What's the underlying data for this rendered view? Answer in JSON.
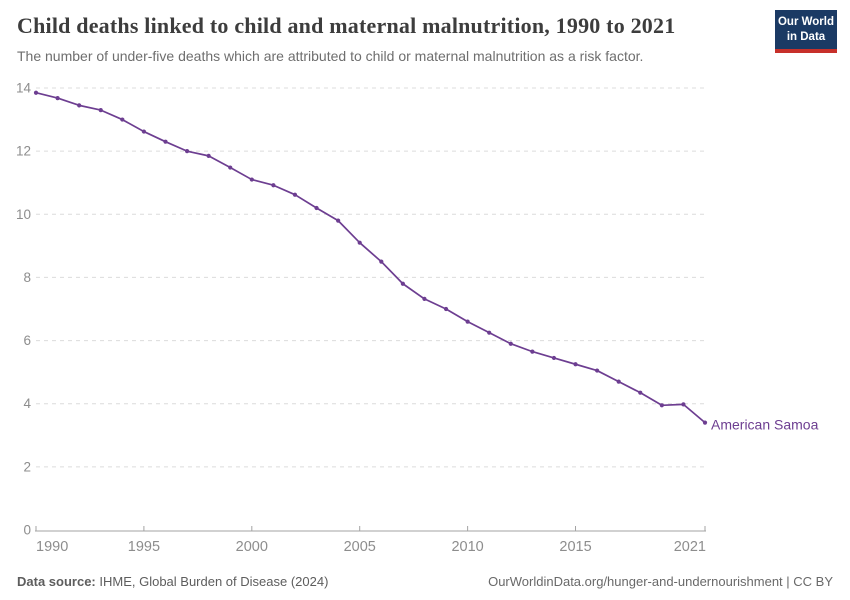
{
  "header": {
    "title": "Child deaths linked to child and maternal malnutrition, 1990 to 2021",
    "subtitle": "The number of under-five deaths which are attributed to child or maternal malnutrition as a risk factor."
  },
  "logo": {
    "line1": "Our World",
    "line2": "in Data",
    "bg_color": "#1b3a64",
    "accent_color": "#c7302a"
  },
  "footer": {
    "source_label": "Data source:",
    "source_text": " IHME, Global Burden of Disease (2024)",
    "attribution": "OurWorldinData.org/hunger-and-undernourishment | CC BY"
  },
  "chart_data": {
    "type": "line",
    "title": "Child deaths linked to child and maternal malnutrition, 1990 to 2021",
    "entity": "American Samoa",
    "x": [
      1990,
      1991,
      1992,
      1993,
      1994,
      1995,
      1996,
      1997,
      1998,
      1999,
      2000,
      2001,
      2002,
      2003,
      2004,
      2005,
      2006,
      2007,
      2008,
      2009,
      2010,
      2011,
      2012,
      2013,
      2014,
      2015,
      2016,
      2017,
      2018,
      2019,
      2020,
      2021
    ],
    "values": [
      13.85,
      13.68,
      13.45,
      13.3,
      13.0,
      12.62,
      12.3,
      12.0,
      11.85,
      11.48,
      11.1,
      10.92,
      10.62,
      10.2,
      9.8,
      9.1,
      8.5,
      7.8,
      7.32,
      7.0,
      6.6,
      6.25,
      5.9,
      5.65,
      5.45,
      5.25,
      5.05,
      4.7,
      4.35,
      3.95,
      3.98,
      3.4
    ],
    "xlabel": "",
    "ylabel": "",
    "xlim": [
      1990,
      2021
    ],
    "ylim": [
      0,
      14
    ],
    "yticks": [
      0,
      2,
      4,
      6,
      8,
      10,
      12,
      14
    ],
    "xticks": [
      1990,
      1995,
      2000,
      2005,
      2010,
      2015,
      2021
    ],
    "grid": true,
    "legend_position": "end-of-line-label",
    "line_color": "#6d3e91",
    "grid_color": "#dcdcdc",
    "axis_color": "#a3a3a3",
    "tick_text_color": "#8d8d8d"
  }
}
